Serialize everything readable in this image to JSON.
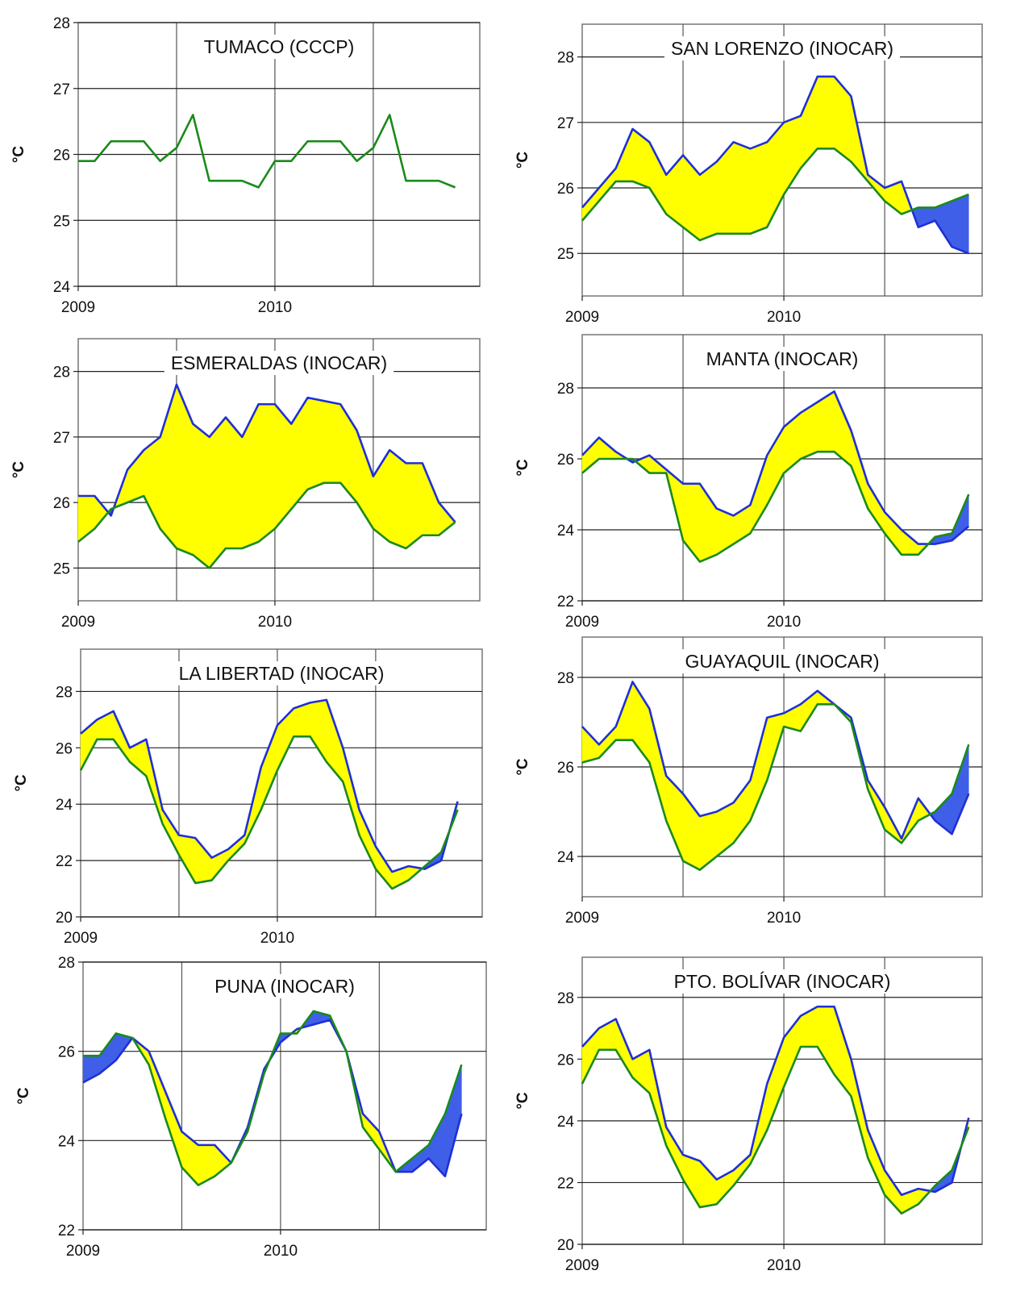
{
  "chart_data": [
    {
      "type": "line",
      "title": "TUMACO (CCCP)",
      "y_label": "°C",
      "categories": [
        "2009",
        null,
        null,
        null,
        null,
        null,
        null,
        null,
        null,
        null,
        null,
        null,
        "2010",
        null,
        null,
        null,
        null,
        null,
        null,
        null,
        null,
        null,
        null,
        null
      ],
      "ylim": [
        24,
        28
      ],
      "yticks": [
        24,
        25,
        26,
        27,
        28
      ],
      "grid": true,
      "series": [
        {
          "color": "#1a8a1a",
          "values": [
            25.9,
            25.9,
            26.2,
            26.2,
            26.2,
            25.9,
            26.1,
            26.6,
            25.6,
            25.6,
            25.6,
            25.5,
            25.9,
            25.9,
            26.2,
            26.2,
            26.2,
            25.9,
            26.1,
            26.6,
            25.6,
            25.6,
            25.6,
            25.5
          ]
        }
      ]
    },
    {
      "type": "line",
      "title": "SAN LORENZO (INOCAR)",
      "y_label": "°C",
      "categories": [
        "2009",
        null,
        null,
        null,
        null,
        null,
        null,
        null,
        null,
        null,
        null,
        null,
        "2010",
        null,
        null,
        null,
        null,
        null,
        null,
        null,
        null,
        null,
        null,
        null
      ],
      "ylim": [
        24.35,
        28.5
      ],
      "yticks": [
        25,
        26,
        27,
        28
      ],
      "grid": true,
      "fill_above": "#ffff00",
      "fill_below": "#3f5fe8",
      "series": [
        {
          "color": "#1f2fd8",
          "values": [
            25.7,
            26.0,
            26.3,
            26.9,
            26.7,
            26.2,
            26.5,
            26.2,
            26.4,
            26.7,
            26.6,
            26.7,
            27.0,
            27.1,
            27.7,
            27.7,
            27.4,
            26.2,
            26.0,
            26.1,
            25.4,
            25.5,
            25.1,
            25.0
          ]
        },
        {
          "color": "#1a8a1a",
          "values": [
            25.5,
            25.8,
            26.1,
            26.1,
            26.0,
            25.6,
            25.4,
            25.2,
            25.3,
            25.3,
            25.3,
            25.4,
            25.9,
            26.3,
            26.6,
            26.6,
            26.4,
            26.1,
            25.8,
            25.6,
            25.7,
            25.7,
            25.8,
            25.9
          ]
        }
      ]
    },
    {
      "type": "line",
      "title": "ESMERALDAS (INOCAR)",
      "y_label": "°C",
      "categories": [
        "2009",
        null,
        null,
        null,
        null,
        null,
        null,
        null,
        null,
        null,
        null,
        null,
        "2010",
        null,
        null,
        null,
        null,
        null,
        null,
        null,
        null,
        null,
        null,
        null
      ],
      "ylim": [
        24.5,
        28.5
      ],
      "yticks": [
        25,
        26,
        27,
        28
      ],
      "grid": true,
      "fill_above": "#ffff00",
      "fill_below": "#3f5fe8",
      "series": [
        {
          "color": "#1f2fd8",
          "values": [
            26.1,
            26.1,
            25.8,
            26.5,
            26.8,
            27.0,
            27.8,
            27.2,
            27.0,
            27.3,
            27.0,
            27.5,
            27.5,
            27.2,
            27.6,
            27.55,
            27.5,
            27.1,
            26.4,
            26.8,
            26.6,
            26.6,
            26.0,
            25.7
          ]
        },
        {
          "color": "#1a8a1a",
          "values": [
            25.4,
            25.6,
            25.9,
            26.0,
            26.1,
            25.6,
            25.3,
            25.2,
            25.0,
            25.3,
            25.3,
            25.4,
            25.6,
            25.9,
            26.2,
            26.3,
            26.3,
            26.0,
            25.6,
            25.4,
            25.3,
            25.5,
            25.5,
            25.7
          ]
        }
      ]
    },
    {
      "type": "line",
      "title": "MANTA (INOCAR)",
      "y_label": "°C",
      "categories": [
        "2009",
        null,
        null,
        null,
        null,
        null,
        null,
        null,
        null,
        null,
        null,
        null,
        "2010",
        null,
        null,
        null,
        null,
        null,
        null,
        null,
        null,
        null,
        null,
        null
      ],
      "ylim": [
        22,
        29.5
      ],
      "yticks": [
        22,
        24,
        26,
        28
      ],
      "grid": true,
      "fill_above": "#ffff00",
      "fill_below": "#3f5fe8",
      "series": [
        {
          "color": "#1f2fd8",
          "values": [
            26.1,
            26.6,
            26.2,
            25.9,
            26.1,
            25.7,
            25.3,
            25.3,
            24.6,
            24.4,
            24.7,
            26.1,
            26.9,
            27.3,
            27.6,
            27.9,
            26.8,
            25.3,
            24.5,
            24.0,
            23.6,
            23.6,
            23.7,
            24.1
          ]
        },
        {
          "color": "#1a8a1a",
          "values": [
            25.6,
            26.0,
            26.0,
            26.0,
            25.6,
            25.6,
            23.7,
            23.1,
            23.3,
            23.6,
            23.9,
            24.7,
            25.6,
            26.0,
            26.2,
            26.2,
            25.8,
            24.6,
            23.9,
            23.3,
            23.3,
            23.8,
            23.9,
            25.0
          ]
        }
      ]
    },
    {
      "type": "line",
      "title": "LA LIBERTAD (INOCAR)",
      "y_label": "°C",
      "categories": [
        "2009",
        null,
        null,
        null,
        null,
        null,
        null,
        null,
        null,
        null,
        null,
        null,
        "2010",
        null,
        null,
        null,
        null,
        null,
        null,
        null,
        null,
        null,
        null,
        null
      ],
      "ylim": [
        20,
        29.5
      ],
      "yticks": [
        20,
        22,
        24,
        26,
        28
      ],
      "grid": true,
      "fill_above": "#ffff00",
      "fill_below": "#3f5fe8",
      "series": [
        {
          "color": "#1f2fd8",
          "values": [
            26.5,
            27.0,
            27.3,
            26.0,
            26.3,
            23.8,
            22.9,
            22.8,
            22.1,
            22.4,
            22.9,
            25.3,
            26.8,
            27.4,
            27.6,
            27.7,
            26.0,
            23.8,
            22.5,
            21.6,
            21.8,
            21.7,
            22.0,
            24.1
          ]
        },
        {
          "color": "#1a8a1a",
          "values": [
            25.2,
            26.3,
            26.3,
            25.5,
            25.0,
            23.3,
            22.2,
            21.2,
            21.3,
            22.0,
            22.6,
            23.8,
            25.2,
            26.4,
            26.4,
            25.5,
            24.8,
            22.9,
            21.7,
            21.0,
            21.3,
            21.8,
            22.3,
            23.8
          ]
        }
      ]
    },
    {
      "type": "line",
      "title": "GUAYAQUIL (INOCAR)",
      "y_label": "°C",
      "categories": [
        "2009",
        null,
        null,
        null,
        null,
        null,
        null,
        null,
        null,
        null,
        null,
        null,
        "2010",
        null,
        null,
        null,
        null,
        null,
        null,
        null,
        null,
        null,
        null,
        null
      ],
      "ylim": [
        23.1,
        28.9
      ],
      "yticks": [
        24,
        26,
        28
      ],
      "grid": true,
      "fill_above": "#ffff00",
      "fill_below": "#3f5fe8",
      "series": [
        {
          "color": "#1f2fd8",
          "values": [
            26.9,
            26.5,
            26.9,
            27.9,
            27.3,
            25.8,
            25.4,
            24.9,
            25.0,
            25.2,
            25.7,
            27.1,
            27.2,
            27.4,
            27.7,
            27.4,
            27.1,
            25.7,
            25.1,
            24.4,
            25.3,
            24.8,
            24.5,
            25.4
          ]
        },
        {
          "color": "#1a8a1a",
          "values": [
            26.1,
            26.2,
            26.6,
            26.6,
            26.1,
            24.8,
            23.9,
            23.7,
            24.0,
            24.3,
            24.8,
            25.7,
            26.9,
            26.8,
            27.4,
            27.4,
            27.0,
            25.5,
            24.6,
            24.3,
            24.8,
            25.0,
            25.4,
            26.5
          ]
        }
      ]
    },
    {
      "type": "line",
      "title": "PUNA (INOCAR)",
      "y_label": "°C",
      "categories": [
        "2009",
        null,
        null,
        null,
        null,
        null,
        null,
        null,
        null,
        null,
        null,
        null,
        "2010",
        null,
        null,
        null,
        null,
        null,
        null,
        null,
        null,
        null,
        null,
        null
      ],
      "ylim": [
        22,
        28
      ],
      "yticks": [
        22,
        24,
        26,
        28
      ],
      "grid": true,
      "fill_above": "#ffff00",
      "fill_below": "#3f5fe8",
      "series": [
        {
          "color": "#1f2fd8",
          "values": [
            25.3,
            25.5,
            25.8,
            26.3,
            26.0,
            25.1,
            24.2,
            23.9,
            23.9,
            23.5,
            24.3,
            25.6,
            26.2,
            26.5,
            26.6,
            26.7,
            26.0,
            24.6,
            24.2,
            23.3,
            23.3,
            23.6,
            23.2,
            24.6
          ]
        },
        {
          "color": "#1a8a1a",
          "values": [
            25.9,
            25.9,
            26.4,
            26.3,
            25.7,
            24.5,
            23.4,
            23.0,
            23.2,
            23.5,
            24.2,
            25.5,
            26.4,
            26.4,
            26.9,
            26.8,
            26.0,
            24.3,
            23.8,
            23.3,
            23.6,
            23.9,
            24.6,
            25.7
          ]
        }
      ]
    },
    {
      "type": "line",
      "title": "PTO. BOLÍVAR (INOCAR)",
      "y_label": "°C",
      "categories": [
        "2009",
        null,
        null,
        null,
        null,
        null,
        null,
        null,
        null,
        null,
        null,
        null,
        "2010",
        null,
        null,
        null,
        null,
        null,
        null,
        null,
        null,
        null,
        null,
        null
      ],
      "ylim": [
        20,
        29.3
      ],
      "yticks": [
        20,
        22,
        24,
        26,
        28
      ],
      "grid": true,
      "fill_above": "#ffff00",
      "fill_below": "#3f5fe8",
      "series": [
        {
          "color": "#1f2fd8",
          "values": [
            26.4,
            27.0,
            27.3,
            26.0,
            26.3,
            23.8,
            22.9,
            22.7,
            22.1,
            22.4,
            22.9,
            25.2,
            26.7,
            27.4,
            27.7,
            27.7,
            26.0,
            23.7,
            22.4,
            21.6,
            21.8,
            21.7,
            22.0,
            24.1
          ]
        },
        {
          "color": "#1a8a1a",
          "values": [
            25.2,
            26.3,
            26.3,
            25.4,
            24.9,
            23.2,
            22.1,
            21.2,
            21.3,
            21.9,
            22.6,
            23.7,
            25.1,
            26.4,
            26.4,
            25.5,
            24.8,
            22.8,
            21.6,
            21.0,
            21.3,
            21.9,
            22.4,
            23.8
          ]
        }
      ]
    }
  ]
}
